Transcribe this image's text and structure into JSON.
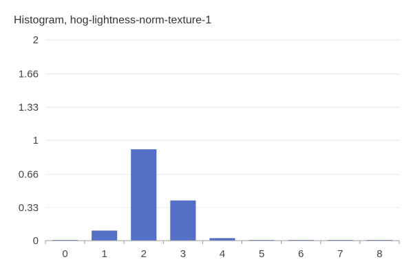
{
  "chart_data": {
    "type": "bar",
    "title": "Histogram, hog-lightness-norm-texture-1",
    "xlabel": "",
    "ylabel": "",
    "categories": [
      "0",
      "1",
      "2",
      "3",
      "4",
      "5",
      "6",
      "7",
      "8"
    ],
    "values": [
      0.005,
      0.1,
      0.91,
      0.4,
      0.025,
      0.005,
      0.005,
      0.005,
      0.005
    ],
    "ylim": [
      0,
      2
    ],
    "yticks": [
      "0",
      "0.33",
      "0.66",
      "1",
      "1.33",
      "1.66",
      "2"
    ],
    "ytick_values": [
      0,
      0.33,
      0.66,
      1,
      1.33,
      1.66,
      2
    ],
    "grid": true,
    "legend": "none",
    "colors": {
      "bar": "#5470c6",
      "grid": "#e6e6e6",
      "axis": "#999999",
      "text": "#444444"
    }
  }
}
